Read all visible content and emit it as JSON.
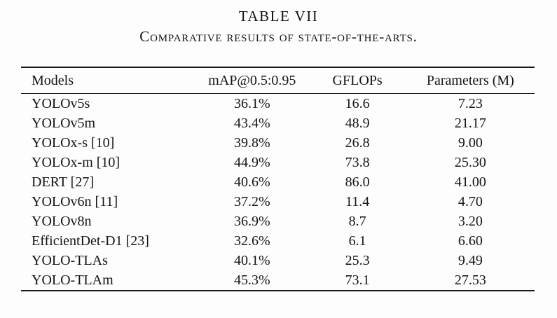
{
  "caption": {
    "label": "TABLE VII",
    "title": "Comparative results of state-of-the-arts."
  },
  "table": {
    "columns": [
      "Models",
      "mAP@0.5:0.95",
      "GFLOPs",
      "Parameters (M)"
    ],
    "rows": [
      [
        "YOLOv5s",
        "36.1%",
        "16.6",
        "7.23"
      ],
      [
        "YOLOv5m",
        "43.4%",
        "48.9",
        "21.17"
      ],
      [
        "YOLOx-s [10]",
        "39.8%",
        "26.8",
        "9.00"
      ],
      [
        "YOLOx-m [10]",
        "44.9%",
        "73.8",
        "25.30"
      ],
      [
        "DERT [27]",
        "40.6%",
        "86.0",
        "41.00"
      ],
      [
        "YOLOv6n [11]",
        "37.2%",
        "11.4",
        "4.70"
      ],
      [
        "YOLOv8n",
        "36.9%",
        "8.7",
        "3.20"
      ],
      [
        "EfficientDet-D1 [23]",
        "32.6%",
        "6.1",
        "6.60"
      ],
      [
        "YOLO-TLAs",
        "40.1%",
        "25.3",
        "9.49"
      ],
      [
        "YOLO-TLAm",
        "45.3%",
        "73.1",
        "27.53"
      ]
    ]
  },
  "colors": {
    "background": "#fdfdfd",
    "text": "#141414",
    "rule": "#1b1b1b"
  }
}
